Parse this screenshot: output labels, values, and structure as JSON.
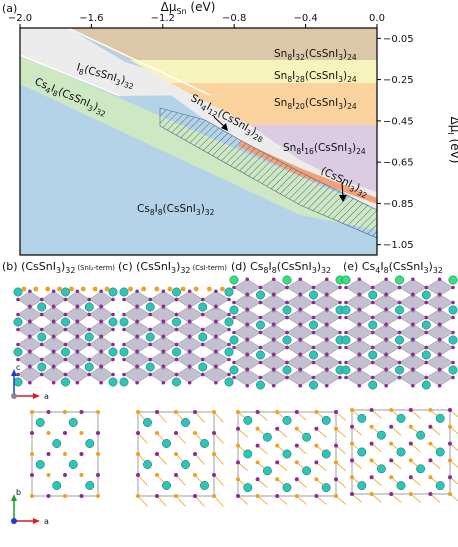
{
  "panel_a": {
    "letter": "(a)",
    "x_axis": {
      "label": "Δμ",
      "label_sub": "Sn",
      "label_unit": " (eV)",
      "ticks": [
        {
          "value": -2.0,
          "label": "−2.0"
        },
        {
          "value": -1.6,
          "label": "−1.6"
        },
        {
          "value": -1.2,
          "label": "−1.2"
        },
        {
          "value": -0.8,
          "label": "−0.8"
        },
        {
          "value": -0.4,
          "label": "−0.4"
        },
        {
          "value": 0.0,
          "label": "0.0"
        }
      ]
    },
    "y_axis": {
      "label": "Δμ",
      "label_sub": "I",
      "label_unit": " (eV)",
      "ticks": [
        {
          "value": -0.05,
          "label": "−0.05"
        },
        {
          "value": -0.25,
          "label": "−0.25"
        },
        {
          "value": -0.45,
          "label": "−0.45"
        },
        {
          "value": -0.65,
          "label": "−0.65"
        },
        {
          "value": -0.85,
          "label": "−0.85"
        },
        {
          "value": -1.05,
          "label": "−1.05"
        }
      ]
    },
    "regions": [
      {
        "id": "sn8i32",
        "label": [
          "Sn",
          "8",
          "I",
          "32",
          "(CsSnI",
          "3",
          ")",
          "24"
        ],
        "color": "#dcc8a8"
      },
      {
        "id": "sn8i28",
        "label": [
          "Sn",
          "8",
          "I",
          "28",
          "(CsSnI",
          "3",
          ")",
          "24"
        ],
        "color": "#f7f3bd"
      },
      {
        "id": "sn8i20",
        "label": [
          "Sn",
          "8",
          "I",
          "20",
          "(CsSnI",
          "3",
          ")",
          "24"
        ],
        "color": "#fbd39e"
      },
      {
        "id": "sn8i16",
        "label": [
          "Sn",
          "8",
          "I",
          "16",
          "(CsSnI",
          "3",
          ")",
          "24"
        ],
        "color": "#dbcbe3"
      },
      {
        "id": "i8",
        "label": [
          "I",
          "8",
          "(CsSnI",
          "3",
          ")",
          "32"
        ],
        "color": "#ececec"
      },
      {
        "id": "cs4i8",
        "label": [
          "Cs",
          "4",
          "I",
          "8",
          "(CsSnI",
          "3",
          ")",
          "32"
        ],
        "color": "#cfe8c4"
      },
      {
        "id": "sn4i12",
        "label": [
          "Sn",
          "4",
          "I",
          "12",
          "(CsSnI",
          "3",
          ")",
          "28"
        ],
        "color": "#ececec"
      },
      {
        "id": "cssni3",
        "label": [
          "(CsSnI",
          "3",
          ")",
          "32"
        ],
        "color": "#f2a07a"
      },
      {
        "id": "cs8i8",
        "label": [
          "Cs",
          "8",
          "I",
          "8",
          "(CsSnI",
          "3",
          ")",
          "32"
        ],
        "color": "#b5d3e8"
      }
    ]
  },
  "panels": [
    {
      "letter": "(b)",
      "formula": [
        "(CsSnI",
        "3",
        ")",
        "32"
      ],
      "note": " (SnI₂-term)"
    },
    {
      "letter": "(c)",
      "formula": [
        "(CsSnI",
        "3",
        ")",
        "32"
      ],
      "note": " (CsI-term)"
    },
    {
      "letter": "(d)",
      "formula": [
        "Cs",
        "8",
        "I",
        "8",
        "(CsSnI",
        "3",
        ")",
        "32"
      ],
      "note": ""
    },
    {
      "letter": "(e)",
      "formula": [
        "Cs",
        "4",
        "I",
        "8",
        "(CsSnI",
        "3",
        ")",
        "32"
      ],
      "note": ""
    }
  ],
  "axes_side": {
    "c": "c",
    "a": "a"
  },
  "axes_top": {
    "b": "b",
    "a": "a"
  },
  "colors": {
    "cs": "#2ec4b6",
    "cs_alt": "#37e07a",
    "i": "#8e2a94",
    "sn": "#9aa0b0",
    "sn_top": "#f0a020",
    "octa": "#a9a7bd"
  }
}
